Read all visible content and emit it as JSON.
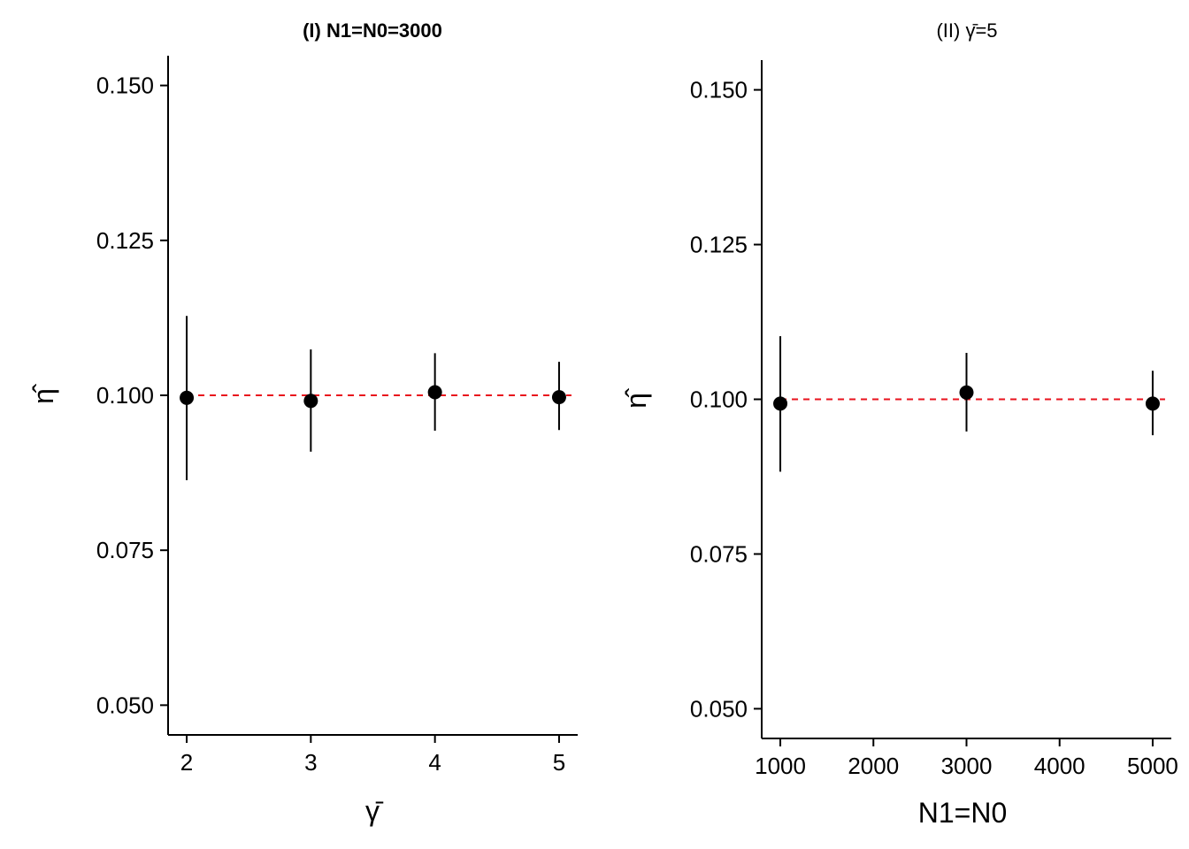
{
  "colors": {
    "reference": "#e8121c",
    "point": "#111111",
    "axis": "#000000"
  },
  "chart_data": [
    {
      "type": "scatter",
      "title": "(I) N1=N0=3000",
      "title_bold": true,
      "xlabel": "γ̄",
      "ylabel": "η̂",
      "x": [
        2,
        3,
        4,
        5
      ],
      "y": [
        0.0996,
        0.0991,
        0.1005,
        0.0997
      ],
      "y_lower": [
        0.0863,
        0.0909,
        0.0943,
        0.0944
      ],
      "y_upper": [
        0.1128,
        0.1074,
        0.1068,
        0.1054
      ],
      "xlim": [
        1.85,
        5.15
      ],
      "ylim": [
        0.0452,
        0.1548
      ],
      "xticks": [
        2,
        3,
        4,
        5
      ],
      "xtick_labels": [
        "2",
        "3",
        "4",
        "5"
      ],
      "yticks": [
        0.05,
        0.075,
        0.1,
        0.125,
        0.15
      ],
      "ytick_labels": [
        "0.050",
        "0.075",
        "0.100",
        "0.125",
        "0.150"
      ],
      "reference_y": 0.1,
      "grid": false
    },
    {
      "type": "scatter",
      "title": "(II) γ̄=5",
      "title_bold": false,
      "xlabel": "N1=N0",
      "ylabel": "η̂",
      "x": [
        1000,
        3000,
        5000
      ],
      "y": [
        0.0993,
        0.1011,
        0.0993
      ],
      "y_lower": [
        0.0883,
        0.0948,
        0.0942
      ],
      "y_upper": [
        0.1102,
        0.1075,
        0.1046
      ],
      "xlim": [
        800,
        5200
      ],
      "ylim": [
        0.0452,
        0.1548
      ],
      "xticks": [
        1000,
        2000,
        3000,
        4000,
        5000
      ],
      "xtick_labels": [
        "1000",
        "2000",
        "3000",
        "4000",
        "5000"
      ],
      "yticks": [
        0.05,
        0.075,
        0.1,
        0.125,
        0.15
      ],
      "ytick_labels": [
        "0.050",
        "0.075",
        "0.100",
        "0.125",
        "0.150"
      ],
      "reference_y": 0.1,
      "grid": false
    }
  ]
}
